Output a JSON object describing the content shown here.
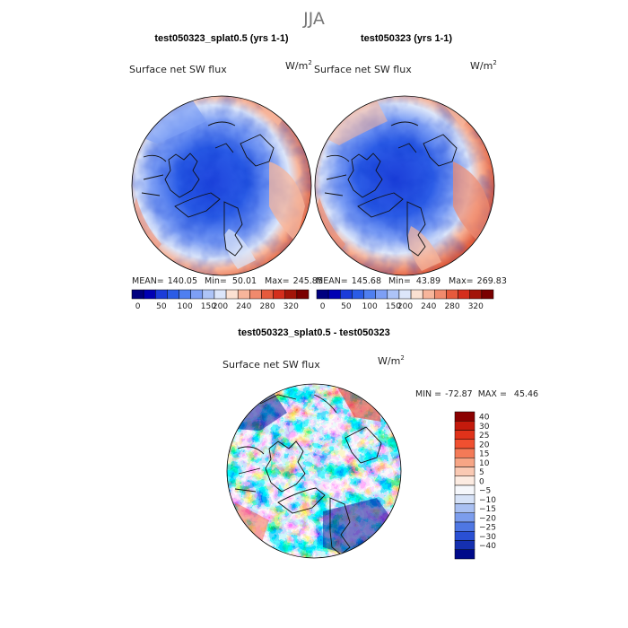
{
  "page_title": "JJA",
  "chart_data": [
    {
      "type": "heatmap",
      "projection": "north-polar-stereographic",
      "title": "test050323_splat0.5 (yrs 1-1)",
      "variable": "Surface net SW flux",
      "units": "W/m",
      "units_exp": "2",
      "mean_label": "MEAN=",
      "mean": "140.05",
      "min_label": "Min=",
      "min": "50.01",
      "max_label": "Max=",
      "max": "245.85",
      "colorbar": {
        "orientation": "horizontal",
        "labels": [
          "0",
          "50",
          "100",
          "150",
          "200",
          "240",
          "280",
          "320"
        ],
        "colors": [
          "#00007f",
          "#0000b3",
          "#1b3cd9",
          "#2b5ce6",
          "#4f7ff0",
          "#7d9ff5",
          "#adc4f7",
          "#dce6fa",
          "#fbe1d2",
          "#f7b59b",
          "#f08a6d",
          "#e65a3c",
          "#d42e1c",
          "#a31509",
          "#7a0000"
        ]
      }
    },
    {
      "type": "heatmap",
      "projection": "north-polar-stereographic",
      "title": "test050323 (yrs 1-1)",
      "variable": "Surface net SW flux",
      "units": "W/m",
      "units_exp": "2",
      "mean_label": "MEAN=",
      "mean": "145.68",
      "min_label": "Min=",
      "min": "43.89",
      "max_label": "Max=",
      "max": "269.83",
      "colorbar": {
        "orientation": "horizontal",
        "labels": [
          "0",
          "50",
          "100",
          "150",
          "200",
          "240",
          "280",
          "320"
        ],
        "colors": [
          "#00007f",
          "#0000b3",
          "#1b3cd9",
          "#2b5ce6",
          "#4f7ff0",
          "#7d9ff5",
          "#adc4f7",
          "#dce6fa",
          "#fbe1d2",
          "#f7b59b",
          "#f08a6d",
          "#e65a3c",
          "#d42e1c",
          "#a31509",
          "#7a0000"
        ]
      }
    },
    {
      "type": "heatmap",
      "projection": "north-polar-stereographic",
      "title": "test050323_splat0.5 - test050323",
      "variable": "Surface net SW flux",
      "units": "W/m",
      "units_exp": "2",
      "min_label": "MIN =",
      "min": "-72.87",
      "max_label": "MAX =",
      "max": "45.46",
      "colorbar": {
        "orientation": "vertical",
        "labels": [
          "40",
          "30",
          "25",
          "20",
          "15",
          "10",
          "5",
          "0",
          "−5",
          "−10",
          "−15",
          "−20",
          "−25",
          "−30",
          "−40"
        ],
        "colors": [
          "#8b0000",
          "#c41a0c",
          "#e0321a",
          "#f05030",
          "#f47a57",
          "#f7a585",
          "#fac9b3",
          "#fcebe1",
          "#f5f7fb",
          "#d6e2f7",
          "#a9c0f2",
          "#7c9ded",
          "#4f77e3",
          "#2a50d4",
          "#1530b0",
          "#000a8a"
        ]
      }
    }
  ]
}
